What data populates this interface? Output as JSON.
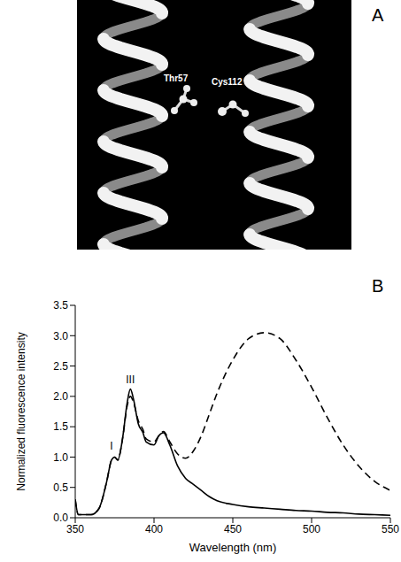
{
  "panel_a": {
    "label": "A",
    "residues": [
      "Thr57",
      "Cys112"
    ]
  },
  "chart_data": {
    "type": "line",
    "panel_label": "B",
    "x_label": "Wavelength (nm)",
    "y_label": "Normalized fluorescence intensity",
    "x": [
      350,
      352,
      355,
      360,
      365,
      370,
      373,
      375,
      377,
      380,
      383,
      385,
      387,
      390,
      393,
      395,
      400,
      403,
      406,
      410,
      415,
      420,
      425,
      430,
      435,
      440,
      450,
      460,
      470,
      480,
      490,
      500,
      510,
      520,
      530,
      540,
      550
    ],
    "series": [
      {
        "color": "#000000",
        "line_style": "solid",
        "values": [
          0.3,
          0.05,
          0.05,
          0.05,
          0.15,
          0.6,
          0.95,
          1.0,
          0.95,
          1.3,
          1.9,
          2.12,
          1.95,
          1.55,
          1.4,
          1.25,
          1.2,
          1.35,
          1.4,
          1.2,
          0.85,
          0.65,
          0.55,
          0.45,
          0.35,
          0.28,
          0.22,
          0.18,
          0.16,
          0.14,
          0.12,
          0.11,
          0.09,
          0.08,
          0.06,
          0.05,
          0.04
        ]
      },
      {
        "color": "#000000",
        "line_style": "dashed",
        "values": [
          0.3,
          0.05,
          0.05,
          0.05,
          0.15,
          0.6,
          0.95,
          1.0,
          0.95,
          1.3,
          1.85,
          2.0,
          1.9,
          1.6,
          1.45,
          1.3,
          1.25,
          1.35,
          1.42,
          1.25,
          1.05,
          0.98,
          1.1,
          1.35,
          1.7,
          2.05,
          2.6,
          2.95,
          3.05,
          2.95,
          2.6,
          2.15,
          1.65,
          1.2,
          0.85,
          0.6,
          0.45
        ]
      }
    ],
    "xlim": [
      350,
      550
    ],
    "xticks": [
      350,
      400,
      450,
      500,
      550
    ],
    "ylim": [
      0,
      3.5
    ],
    "yticks": [
      {
        "value": 0,
        "label": "0.0"
      },
      {
        "value": 0.5,
        "label": "0.5"
      },
      {
        "value": 1,
        "label": "1.0"
      },
      {
        "value": 1.5,
        "label": "1.5"
      },
      {
        "value": 2,
        "label": "2.0"
      },
      {
        "value": 2.5,
        "label": "2.5"
      },
      {
        "value": 3,
        "label": "3.0"
      },
      {
        "value": 3.5,
        "label": "3.5"
      }
    ],
    "annotations": [
      {
        "text": "I",
        "x": 373,
        "y": 1.05
      },
      {
        "text": "III",
        "x": 385,
        "y": 2.15
      }
    ],
    "grid": false
  }
}
